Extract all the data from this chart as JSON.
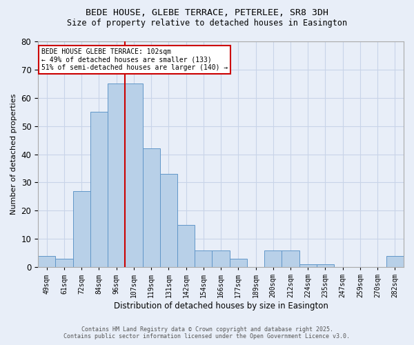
{
  "title_line1": "BEDE HOUSE, GLEBE TERRACE, PETERLEE, SR8 3DH",
  "title_line2": "Size of property relative to detached houses in Easington",
  "xlabel": "Distribution of detached houses by size in Easington",
  "ylabel": "Number of detached properties",
  "bin_labels": [
    "49sqm",
    "61sqm",
    "72sqm",
    "84sqm",
    "96sqm",
    "107sqm",
    "119sqm",
    "131sqm",
    "142sqm",
    "154sqm",
    "166sqm",
    "177sqm",
    "189sqm",
    "200sqm",
    "212sqm",
    "224sqm",
    "235sqm",
    "247sqm",
    "259sqm",
    "270sqm",
    "282sqm"
  ],
  "bar_values": [
    4,
    3,
    27,
    55,
    65,
    65,
    42,
    33,
    15,
    6,
    6,
    3,
    0,
    6,
    6,
    1,
    1,
    0,
    0,
    0,
    4
  ],
  "bar_color": "#b8d0e8",
  "bar_edge_color": "#6096c8",
  "vline_x": 4.5,
  "annotation_text": "BEDE HOUSE GLEBE TERRACE: 102sqm\n← 49% of detached houses are smaller (133)\n51% of semi-detached houses are larger (140) →",
  "annotation_box_color": "#ffffff",
  "annotation_border_color": "#cc0000",
  "grid_color": "#c8d4e8",
  "background_color": "#e8eef8",
  "vline_color": "#cc0000",
  "footer_line1": "Contains HM Land Registry data © Crown copyright and database right 2025.",
  "footer_line2": "Contains public sector information licensed under the Open Government Licence v3.0.",
  "ylim": [
    0,
    80
  ],
  "yticks": [
    0,
    10,
    20,
    30,
    40,
    50,
    60,
    70,
    80
  ]
}
